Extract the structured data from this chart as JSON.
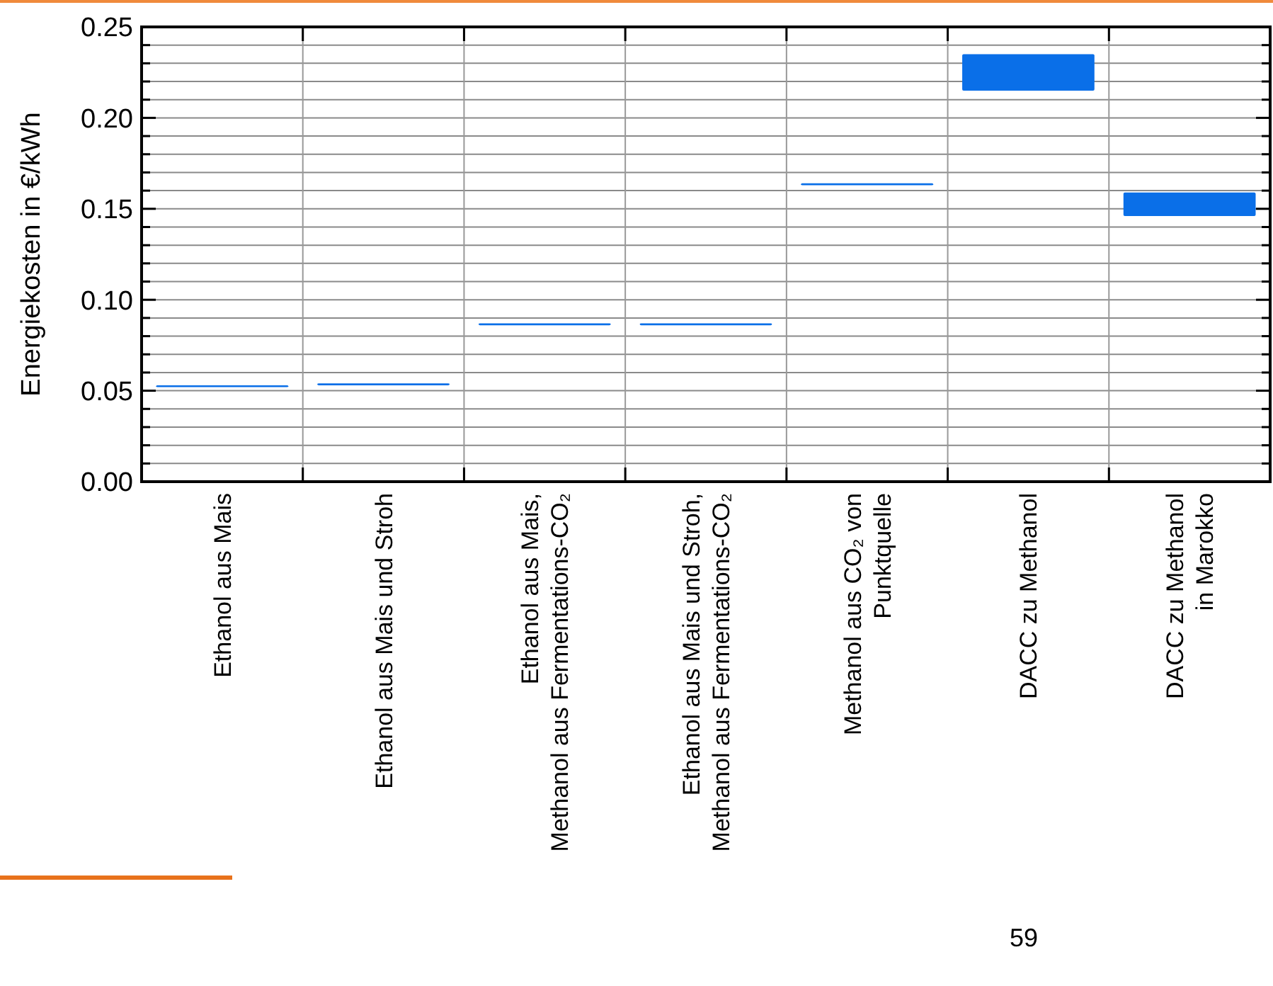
{
  "chart_data": {
    "type": "bar",
    "ylabel": "Energiekosten in €/kWh",
    "categories": [
      "Ethanol aus Mais",
      "Ethanol aus Mais und Stroh",
      "Ethanol aus Mais,\nMethanol aus Fermentations-CO₂",
      "Ethanol aus Mais und Stroh,\nMethanol aus Fermentations-CO₂",
      "Methanol aus CO₂ von\nPunktquelle",
      "DACC zu Methanol",
      "DACC zu Methanol\nin Marokko"
    ],
    "base": [
      0.052,
      0.053,
      0.086,
      0.086,
      0.163,
      0.215,
      0.146
    ],
    "values": [
      0.001,
      0.001,
      0.001,
      0.001,
      0.001,
      0.02,
      0.013
    ],
    "color": "#0a6fe8",
    "ylim": [
      0,
      0.25
    ],
    "yticks": [
      {
        "value": 0,
        "label": "0.00"
      },
      {
        "value": 0.05,
        "label": "0.05"
      },
      {
        "value": 0.1,
        "label": "0.10"
      },
      {
        "value": 0.15,
        "label": "0.15"
      },
      {
        "value": 0.2,
        "label": "0.20"
      },
      {
        "value": 0.25,
        "label": "0.25"
      }
    ],
    "grid": true,
    "annotations": [
      "59"
    ]
  }
}
